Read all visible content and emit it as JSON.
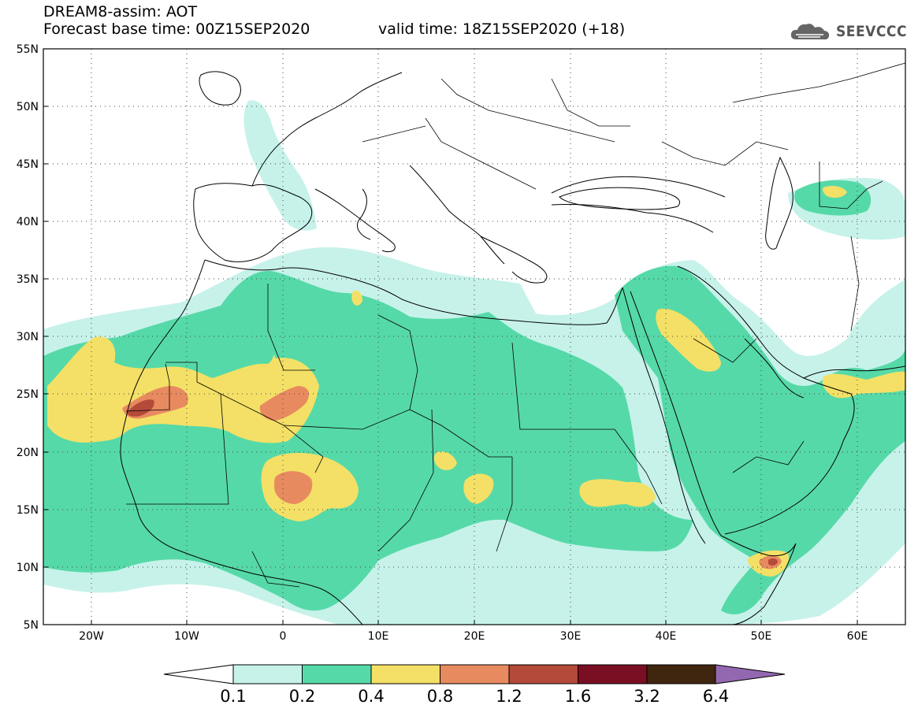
{
  "header": {
    "title": "DREAM8-assim: AOT",
    "base_time": "Forecast base time: 00Z15SEP2020",
    "valid_time": "valid time: 18Z15SEP2020 (+18)"
  },
  "brand": {
    "name": "SEEVCCC",
    "icon": "cloud-logo-icon"
  },
  "map": {
    "lat_labels": [
      "55N",
      "50N",
      "45N",
      "40N",
      "35N",
      "30N",
      "25N",
      "20N",
      "15N",
      "10N",
      "5N"
    ],
    "lon_labels": [
      "20W",
      "10W",
      "0",
      "10E",
      "20E",
      "30E",
      "40E",
      "50E",
      "60E"
    ],
    "lat_range": [
      5,
      55
    ],
    "lon_range": [
      -25,
      65
    ],
    "grid": "dotted"
  },
  "legend": {
    "boundaries": [
      "0.1",
      "0.2",
      "0.4",
      "0.8",
      "1.2",
      "1.6",
      "3.2",
      "6.4"
    ],
    "colors": [
      "#c6f2ea",
      "#56d9a8",
      "#f4e066",
      "#e88a60",
      "#b34a3a",
      "#7a0e22",
      "#40250f",
      "#9468b1"
    ],
    "under_color": "#ffffff",
    "over_color": "#9468b1"
  },
  "colors": {
    "c01": "#c6f2ea",
    "c02": "#56d9a8",
    "c04": "#f4e066",
    "c08": "#e88a60",
    "c12": "#b34a3a",
    "c16": "#7a0e22"
  }
}
